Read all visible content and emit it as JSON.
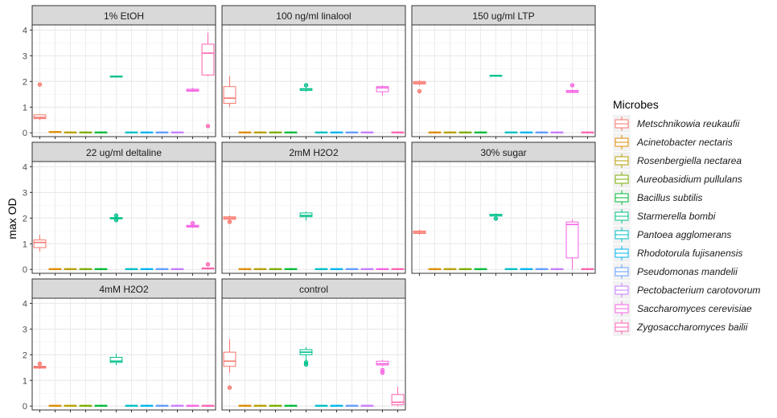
{
  "chart_data": {
    "type": "box",
    "ylabel": "max OD",
    "xlabel": "",
    "ylim": [
      -0.15,
      4.2
    ],
    "yticks": [
      0,
      1,
      2,
      3,
      4
    ],
    "grid": true,
    "legend_position": "right",
    "legend_title": "Microbes",
    "microbes": [
      {
        "name": "Metschnikowia reukaufii",
        "color": "#F8766D"
      },
      {
        "name": "Acinetobacter nectaris",
        "color": "#DE8C00"
      },
      {
        "name": "Rosenbergiella nectarea",
        "color": "#B79F00"
      },
      {
        "name": "Aureobasidium pullulans",
        "color": "#7CAE00"
      },
      {
        "name": "Bacillus subtilis",
        "color": "#00BA38"
      },
      {
        "name": "Starmerella bombi",
        "color": "#00C08B"
      },
      {
        "name": "Pantoea agglomerans",
        "color": "#00BFC4"
      },
      {
        "name": "Rhodotorula fujisanensis",
        "color": "#00B4F0"
      },
      {
        "name": "Pseudomonas mandelii",
        "color": "#619CFF"
      },
      {
        "name": "Pectobacterium carotovorum",
        "color": "#C77CFF"
      },
      {
        "name": "Saccharomyces cerevisiae",
        "color": "#F564E3"
      },
      {
        "name": "Zygosaccharomyces bailii",
        "color": "#FF64B0"
      }
    ],
    "panels": [
      {
        "title": "1% EtOH",
        "boxes": [
          [
            0.5,
            0.55,
            0.6,
            0.7,
            0.7,
            [
              1.88
            ]
          ],
          [
            0,
            0.02,
            0.03,
            0.05,
            0.07,
            []
          ],
          [
            0,
            0.01,
            0.02,
            0.03,
            0.04,
            []
          ],
          [
            0,
            0.01,
            0.02,
            0.03,
            0.04,
            []
          ],
          [
            0,
            0.01,
            0.02,
            0.03,
            0.05,
            []
          ],
          [
            2.15,
            2.17,
            2.19,
            2.21,
            2.23,
            []
          ],
          [
            0,
            0.01,
            0.02,
            0.03,
            0.04,
            []
          ],
          [
            0,
            0.01,
            0.02,
            0.03,
            0.04,
            []
          ],
          [
            0,
            0.01,
            0.02,
            0.03,
            0.04,
            []
          ],
          [
            0,
            0.01,
            0.02,
            0.03,
            0.04,
            []
          ],
          [
            1.6,
            1.62,
            1.65,
            1.7,
            1.75,
            []
          ],
          [
            2.2,
            2.25,
            3.1,
            3.45,
            3.9,
            [
              0.26
            ]
          ]
        ]
      },
      {
        "title": "100 ng/ml linalool",
        "boxes": [
          [
            1.0,
            1.15,
            1.35,
            1.8,
            2.2,
            []
          ],
          [
            0,
            0.01,
            0.02,
            0.03,
            0.04,
            []
          ],
          [
            0,
            0.01,
            0.02,
            0.03,
            0.04,
            []
          ],
          [
            0,
            0.01,
            0.02,
            0.03,
            0.04,
            []
          ],
          [
            0,
            0.01,
            0.02,
            0.03,
            0.04,
            []
          ],
          [
            1.6,
            1.65,
            1.7,
            1.72,
            1.75,
            [
              1.85
            ]
          ],
          [
            0,
            0.01,
            0.02,
            0.03,
            0.04,
            []
          ],
          [
            0,
            0.01,
            0.02,
            0.03,
            0.04,
            []
          ],
          [
            0,
            0.01,
            0.02,
            0.03,
            0.04,
            []
          ],
          [
            0,
            0.01,
            0.02,
            0.03,
            0.04,
            []
          ],
          [
            1.45,
            1.6,
            1.75,
            1.8,
            1.85,
            []
          ],
          [
            0,
            0.01,
            0.02,
            0.03,
            0.04,
            []
          ]
        ]
      },
      {
        "title": "150 ug/ml LTP",
        "boxes": [
          [
            1.85,
            1.9,
            1.95,
            2.0,
            2.05,
            [
              1.62
            ]
          ],
          [
            0,
            0.01,
            0.02,
            0.03,
            0.04,
            []
          ],
          [
            0,
            0.01,
            0.02,
            0.03,
            0.04,
            []
          ],
          [
            0,
            0.01,
            0.02,
            0.03,
            0.04,
            []
          ],
          [
            0,
            0.01,
            0.02,
            0.03,
            0.04,
            []
          ],
          [
            2.18,
            2.2,
            2.22,
            2.24,
            2.25,
            []
          ],
          [
            0,
            0.01,
            0.02,
            0.03,
            0.04,
            []
          ],
          [
            0,
            0.01,
            0.02,
            0.03,
            0.04,
            []
          ],
          [
            0,
            0.01,
            0.02,
            0.03,
            0.04,
            []
          ],
          [
            0,
            0.01,
            0.02,
            0.03,
            0.04,
            []
          ],
          [
            1.55,
            1.57,
            1.6,
            1.65,
            1.7,
            [
              1.85
            ]
          ],
          [
            0,
            0.01,
            0.02,
            0.03,
            0.04,
            []
          ]
        ]
      },
      {
        "title": "22 ug/ml deltaline",
        "boxes": [
          [
            0.7,
            0.85,
            1.05,
            1.15,
            1.35,
            []
          ],
          [
            0,
            0.01,
            0.02,
            0.03,
            0.04,
            []
          ],
          [
            0,
            0.01,
            0.02,
            0.03,
            0.04,
            []
          ],
          [
            0,
            0.01,
            0.02,
            0.03,
            0.04,
            []
          ],
          [
            0,
            0.01,
            0.02,
            0.03,
            0.04,
            []
          ],
          [
            1.95,
            1.97,
            2.0,
            2.02,
            2.05,
            [
              2.1,
              1.92
            ]
          ],
          [
            0,
            0.01,
            0.02,
            0.03,
            0.04,
            []
          ],
          [
            0,
            0.01,
            0.02,
            0.03,
            0.04,
            []
          ],
          [
            0,
            0.01,
            0.02,
            0.03,
            0.04,
            []
          ],
          [
            0,
            0.01,
            0.02,
            0.03,
            0.04,
            []
          ],
          [
            1.62,
            1.65,
            1.68,
            1.72,
            1.75,
            [
              1.8
            ]
          ],
          [
            0,
            0.02,
            0.04,
            0.06,
            0.08,
            [
              0.2
            ]
          ]
        ]
      },
      {
        "title": "2mM H2O2",
        "boxes": [
          [
            1.85,
            1.95,
            2.0,
            2.05,
            2.1,
            [
              1.85
            ]
          ],
          [
            0,
            0.01,
            0.02,
            0.03,
            0.04,
            []
          ],
          [
            0,
            0.01,
            0.02,
            0.03,
            0.04,
            []
          ],
          [
            0,
            0.01,
            0.02,
            0.03,
            0.04,
            []
          ],
          [
            0,
            0.01,
            0.02,
            0.03,
            0.04,
            []
          ],
          [
            1.9,
            2.05,
            2.1,
            2.2,
            2.25,
            []
          ],
          [
            0,
            0.01,
            0.02,
            0.03,
            0.04,
            []
          ],
          [
            0,
            0.01,
            0.02,
            0.03,
            0.04,
            []
          ],
          [
            0,
            0.01,
            0.02,
            0.03,
            0.04,
            []
          ],
          [
            0,
            0.01,
            0.02,
            0.03,
            0.04,
            []
          ],
          [
            0,
            0.01,
            0.02,
            0.03,
            0.04,
            []
          ],
          [
            0,
            0.01,
            0.02,
            0.03,
            0.04,
            []
          ]
        ]
      },
      {
        "title": "30% sugar",
        "boxes": [
          [
            1.35,
            1.4,
            1.45,
            1.5,
            1.55,
            []
          ],
          [
            0,
            0.01,
            0.02,
            0.03,
            0.04,
            []
          ],
          [
            0,
            0.01,
            0.02,
            0.03,
            0.04,
            []
          ],
          [
            0,
            0.01,
            0.02,
            0.03,
            0.04,
            []
          ],
          [
            0,
            0.01,
            0.02,
            0.03,
            0.04,
            []
          ],
          [
            2.05,
            2.08,
            2.1,
            2.15,
            2.18,
            [
              1.98
            ]
          ],
          [
            0,
            0.01,
            0.02,
            0.03,
            0.04,
            []
          ],
          [
            0,
            0.01,
            0.02,
            0.03,
            0.04,
            []
          ],
          [
            0,
            0.01,
            0.02,
            0.03,
            0.04,
            []
          ],
          [
            0,
            0.01,
            0.02,
            0.03,
            0.04,
            []
          ],
          [
            0,
            0.45,
            1.75,
            1.85,
            1.95,
            []
          ],
          [
            0,
            0.01,
            0.02,
            0.03,
            0.04,
            []
          ]
        ]
      },
      {
        "title": "4mM H2O2",
        "boxes": [
          [
            1.45,
            1.48,
            1.52,
            1.55,
            1.6,
            [
              1.65
            ]
          ],
          [
            0,
            0.01,
            0.02,
            0.03,
            0.04,
            []
          ],
          [
            0,
            0.01,
            0.02,
            0.03,
            0.04,
            []
          ],
          [
            0,
            0.01,
            0.02,
            0.03,
            0.04,
            []
          ],
          [
            0,
            0.01,
            0.02,
            0.03,
            0.04,
            []
          ],
          [
            1.6,
            1.7,
            1.75,
            1.9,
            2.05,
            []
          ],
          [
            0,
            0.01,
            0.02,
            0.03,
            0.04,
            []
          ],
          [
            0,
            0.01,
            0.02,
            0.03,
            0.04,
            []
          ],
          [
            0,
            0.01,
            0.02,
            0.03,
            0.04,
            []
          ],
          [
            0,
            0.01,
            0.02,
            0.03,
            0.04,
            []
          ],
          [
            0,
            0.01,
            0.02,
            0.03,
            0.04,
            []
          ],
          [
            0,
            0.01,
            0.02,
            0.03,
            0.04,
            []
          ]
        ]
      },
      {
        "title": "control",
        "boxes": [
          [
            1.3,
            1.55,
            1.75,
            2.1,
            2.6,
            [
              0.72
            ]
          ],
          [
            0,
            0.01,
            0.02,
            0.03,
            0.04,
            []
          ],
          [
            0,
            0.01,
            0.02,
            0.03,
            0.04,
            []
          ],
          [
            0,
            0.01,
            0.02,
            0.03,
            0.04,
            []
          ],
          [
            0,
            0.01,
            0.02,
            0.03,
            0.04,
            []
          ],
          [
            1.75,
            2.0,
            2.1,
            2.2,
            2.3,
            [
              1.7,
              1.62
            ]
          ],
          [
            0,
            0.01,
            0.02,
            0.03,
            0.04,
            []
          ],
          [
            0,
            0.01,
            0.02,
            0.03,
            0.04,
            []
          ],
          [
            0,
            0.01,
            0.02,
            0.03,
            0.04,
            []
          ],
          [
            0,
            0.01,
            0.02,
            0.03,
            0.04,
            []
          ],
          [
            1.55,
            1.6,
            1.65,
            1.75,
            1.8,
            [
              1.4,
              1.3
            ]
          ],
          [
            0,
            0.05,
            0.15,
            0.45,
            0.75,
            []
          ]
        ]
      }
    ]
  }
}
